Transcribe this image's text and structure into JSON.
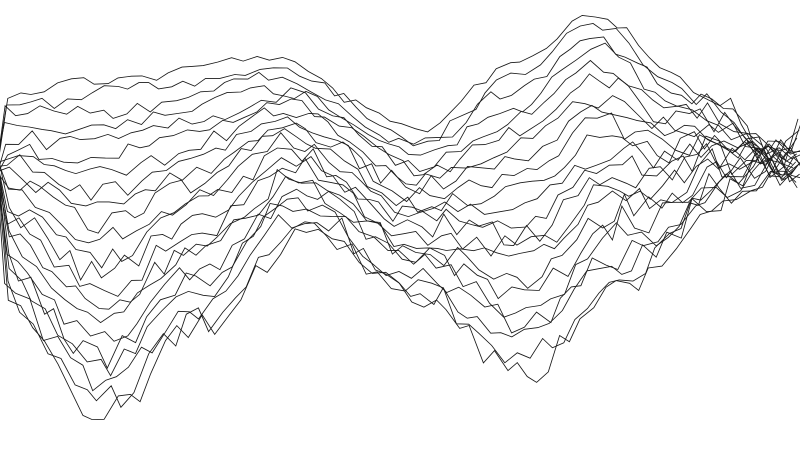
{
  "artwork": {
    "style": "abstract wireframe wave lines",
    "background": "#ffffff",
    "stroke_color": "#1a1a1a",
    "line_count": 22
  }
}
